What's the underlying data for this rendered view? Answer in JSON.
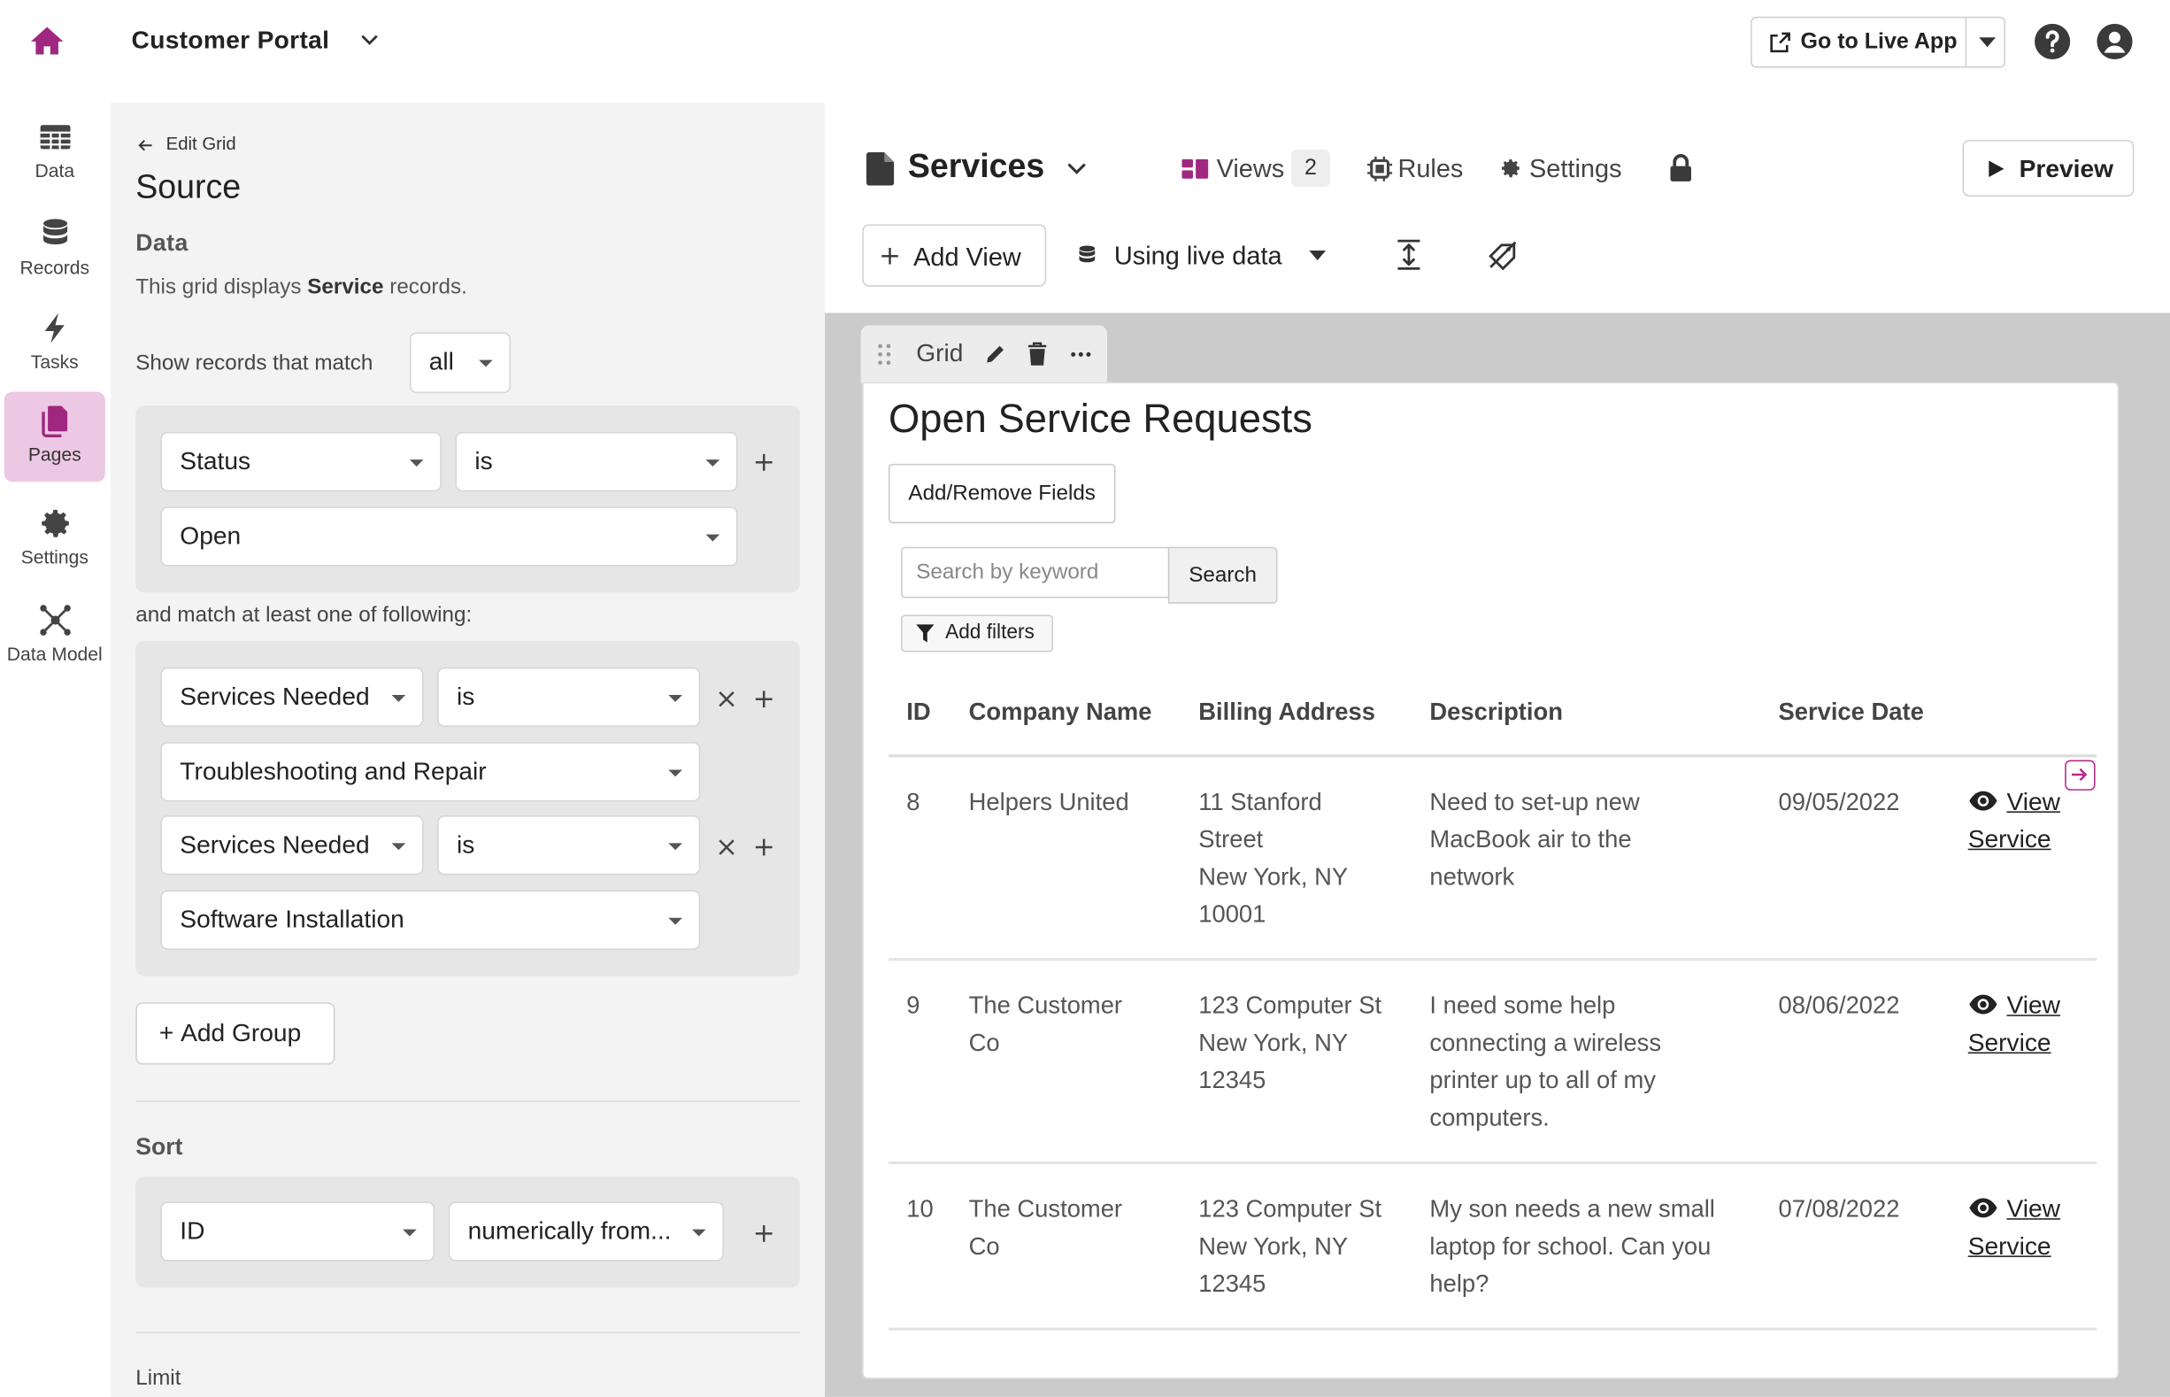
{
  "app": {
    "title": "Customer Portal",
    "live_button": "Go to Live App"
  },
  "rail": [
    {
      "label": "Data",
      "icon": "table-icon"
    },
    {
      "label": "Records",
      "icon": "database-icon"
    },
    {
      "label": "Tasks",
      "icon": "bolt-icon"
    },
    {
      "label": "Pages",
      "icon": "pages-icon",
      "active": true
    },
    {
      "label": "Settings",
      "icon": "gear-icon"
    },
    {
      "label": "Data Model",
      "icon": "network-icon"
    }
  ],
  "source": {
    "back_label": "Edit Grid",
    "heading": "Source",
    "data_heading": "Data",
    "desc_prefix": "This grid displays ",
    "desc_object": "Service",
    "desc_suffix": " records.",
    "match_label": "Show records that match",
    "match_value": "all",
    "group1": {
      "field": "Status",
      "operator": "is",
      "value": "Open"
    },
    "and_label": "and match at least one of following:",
    "group2": [
      {
        "field": "Services Needed",
        "operator": "is",
        "value": "Troubleshooting and Repair"
      },
      {
        "field": "Services Needed",
        "operator": "is",
        "value": "Software Installation"
      }
    ],
    "add_group": "Add Group",
    "sort_heading": "Sort",
    "sort_field": "ID",
    "sort_order": "numerically from...",
    "limit_heading": "Limit"
  },
  "page": {
    "title": "Services",
    "views_label": "Views",
    "views_count": "2",
    "rules_label": "Rules",
    "settings_label": "Settings",
    "preview_label": "Preview",
    "add_view_label": "Add View",
    "data_mode_label": "Using live data"
  },
  "grid": {
    "tab_label": "Grid",
    "title": "Open Service Requests",
    "fields_button": "Add/Remove Fields",
    "search_placeholder": "Search by keyword",
    "search_button": "Search",
    "filters_button": "Add filters",
    "columns": [
      "ID",
      "Company Name",
      "Billing Address",
      "Description",
      "Service Date"
    ],
    "link_line1": "View",
    "link_line2": "Service",
    "rows": [
      {
        "id": "8",
        "company": [
          "Helpers United"
        ],
        "address": [
          "11 Stanford",
          "Street",
          "New York, NY",
          "10001"
        ],
        "description": [
          "Need to set-up new",
          "MacBook air to the",
          "network"
        ],
        "date": "09/05/2022"
      },
      {
        "id": "9",
        "company": [
          "The Customer",
          "Co"
        ],
        "address": [
          "123 Computer St",
          "New York, NY",
          "12345"
        ],
        "description": [
          "I need some help",
          "connecting a wireless",
          "printer up to all of my",
          "computers."
        ],
        "date": "08/06/2022"
      },
      {
        "id": "10",
        "company": [
          "The Customer",
          "Co"
        ],
        "address": [
          "123 Computer St",
          "New York, NY",
          "12345"
        ],
        "description": [
          "My son needs a new small",
          "laptop for school. Can you",
          "help?"
        ],
        "date": "07/08/2022"
      }
    ]
  },
  "colors": {
    "accent": "#b42d8b",
    "rail_active": "#ecc8e4",
    "panel_bg": "#f3f3f3",
    "canvas_bg": "#cbcbcb"
  }
}
